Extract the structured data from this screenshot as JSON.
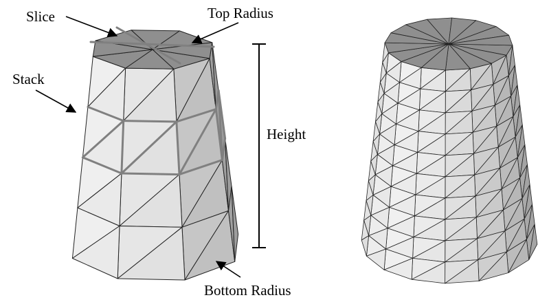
{
  "labels": {
    "slice": "Slice",
    "top_radius": "Top Radius",
    "stack": "Stack",
    "height": "Height",
    "bottom_radius": "Bottom Radius"
  },
  "models": {
    "coarse": {
      "slices": 8,
      "stacks": 4
    },
    "fine": {
      "slices": 16,
      "stacks": 10
    }
  },
  "colors": {
    "top_face": "#8f8f8f",
    "side_light": "#f2f2f2",
    "side_dark": "#8a8a8a",
    "edge": "#222222",
    "highlight_edge": "#808080",
    "background": "#ffffff"
  }
}
